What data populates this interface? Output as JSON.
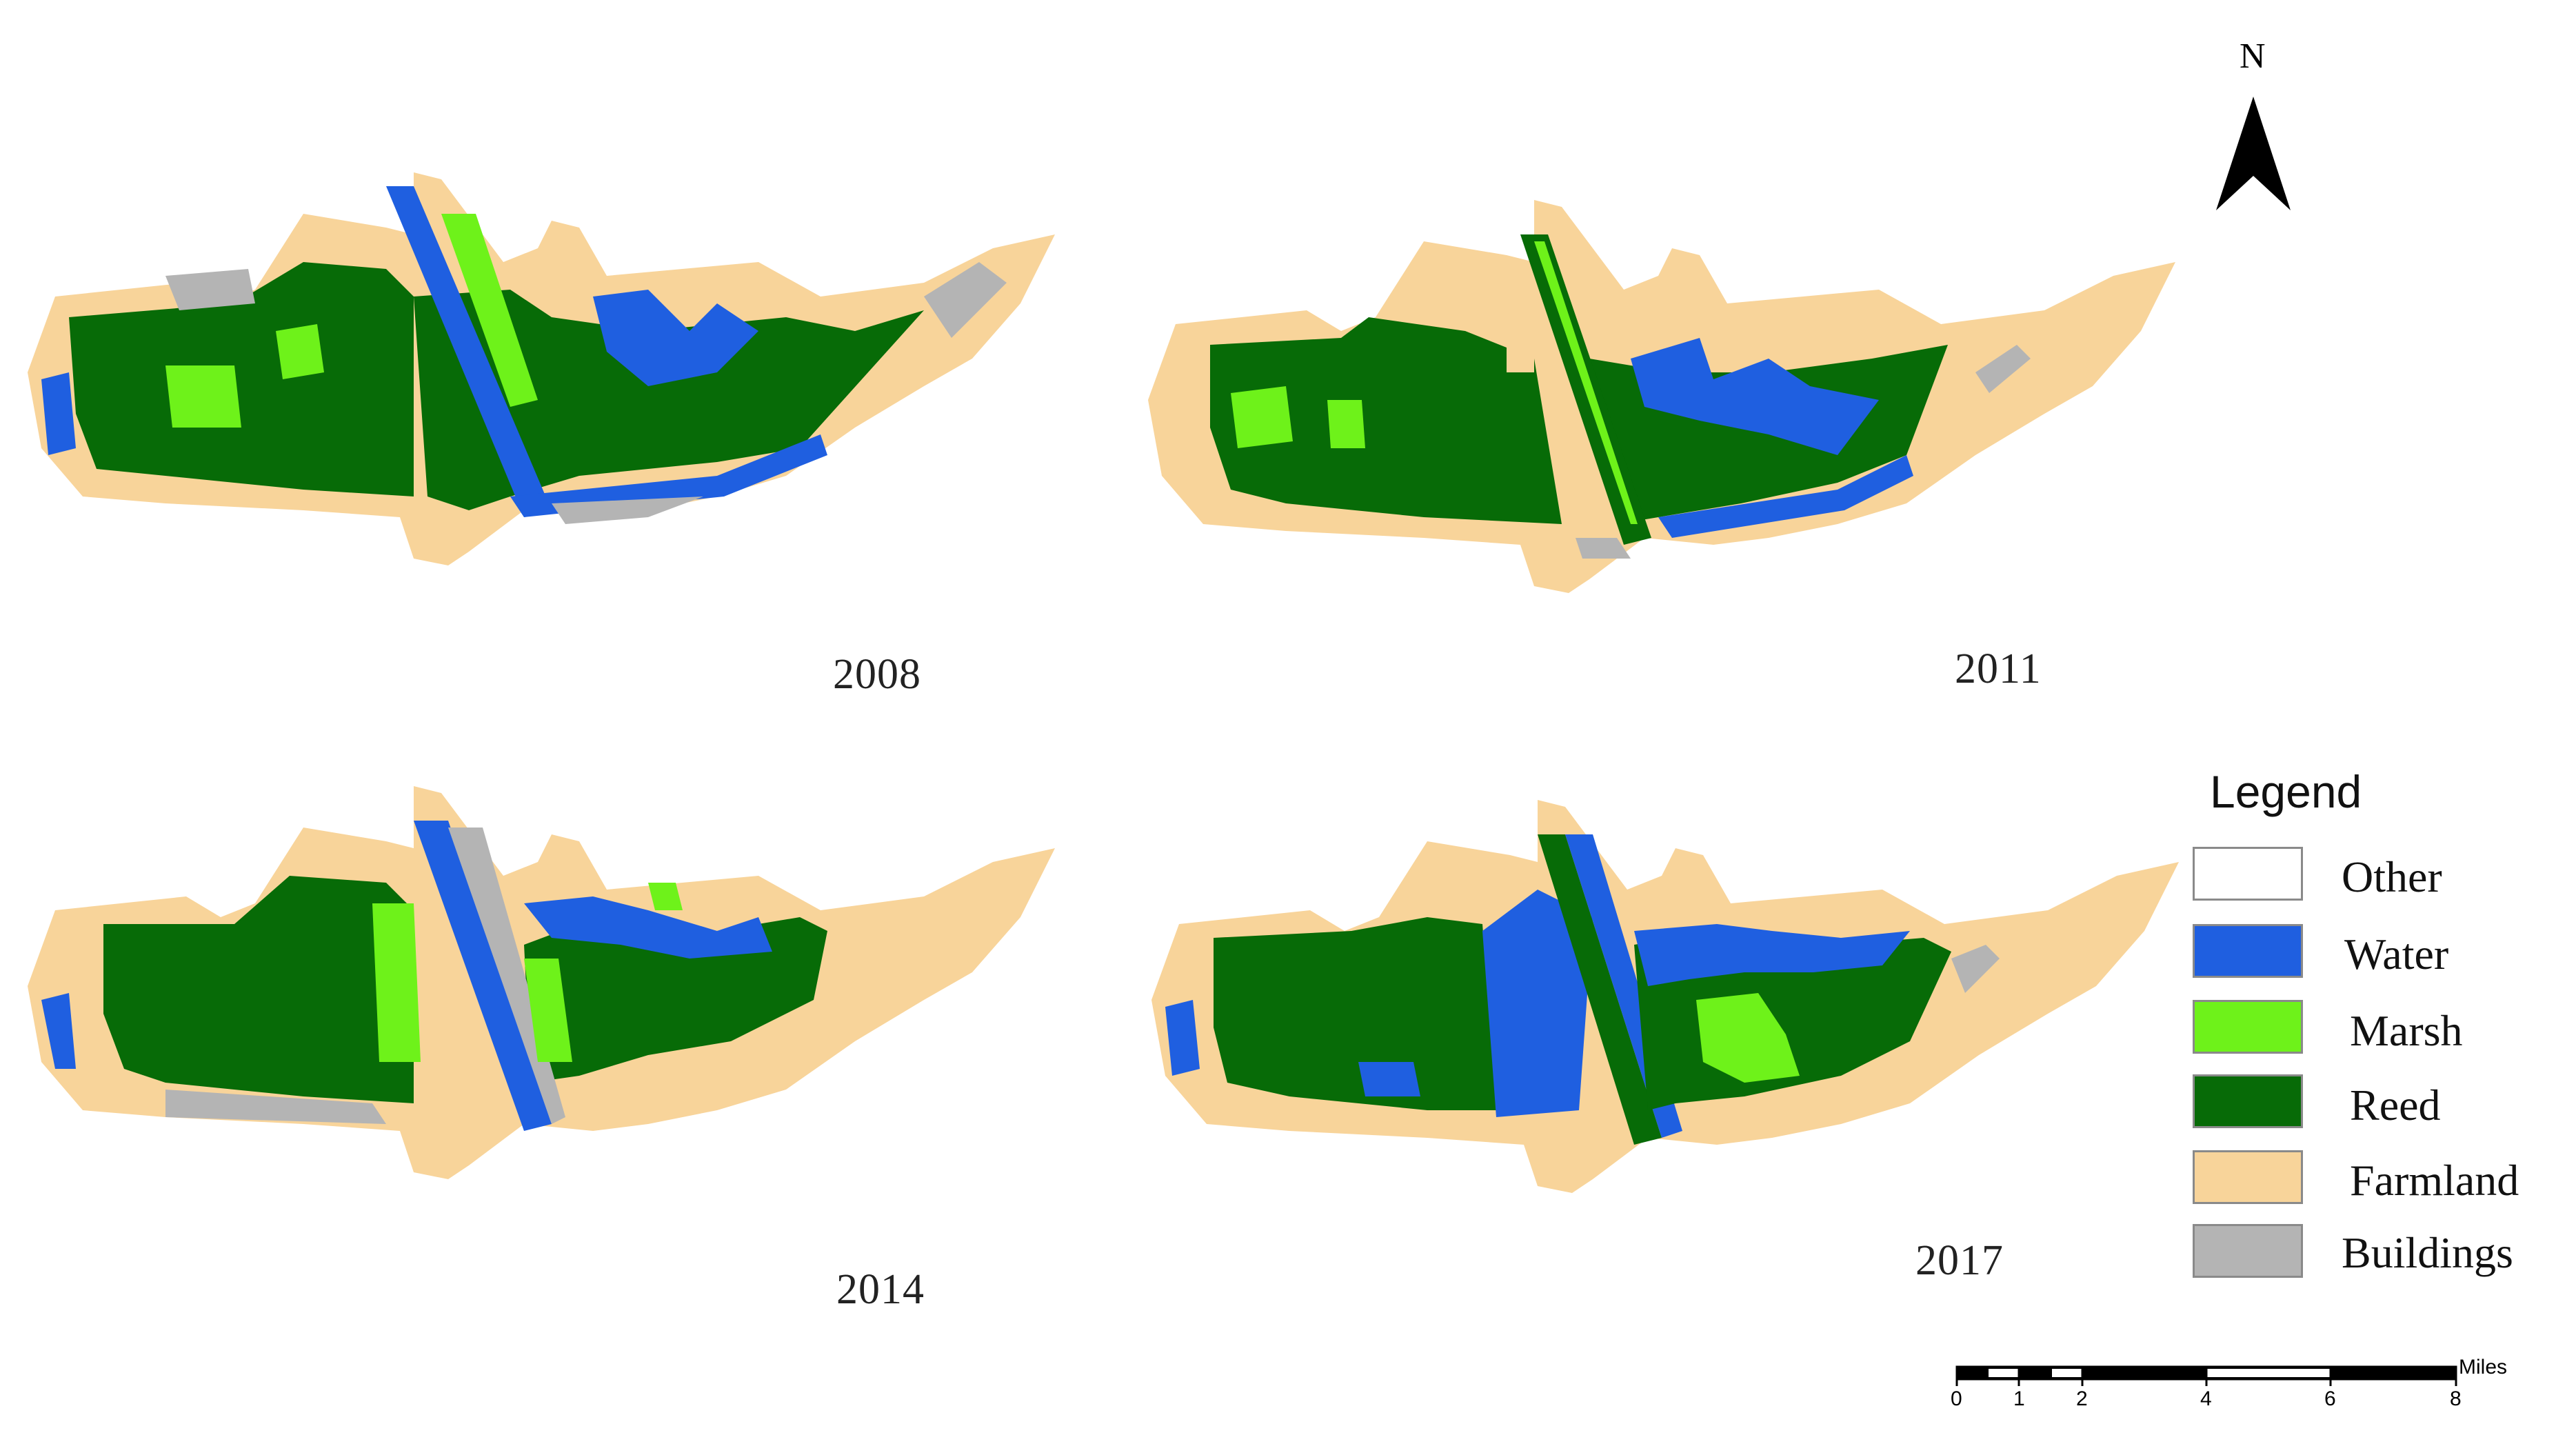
{
  "maps": [
    {
      "year": "2008"
    },
    {
      "year": "2011"
    },
    {
      "year": "2014"
    },
    {
      "year": "2017"
    }
  ],
  "north_arrow": {
    "letter": "N"
  },
  "legend": {
    "title": "Legend",
    "items": [
      {
        "label": "Other",
        "color": "#ffffff"
      },
      {
        "label": "Water",
        "color": "#1f5fe0"
      },
      {
        "label": "Marsh",
        "color": "#6ef21a"
      },
      {
        "label": "Reed",
        "color": "#076b07"
      },
      {
        "label": "Farmland",
        "color": "#f8d49a"
      },
      {
        "label": "Buildings",
        "color": "#b4b4b4"
      }
    ]
  },
  "scale_bar": {
    "unit": "Miles",
    "ticks": [
      "0",
      "1",
      "2",
      "4",
      "6",
      "8"
    ]
  }
}
